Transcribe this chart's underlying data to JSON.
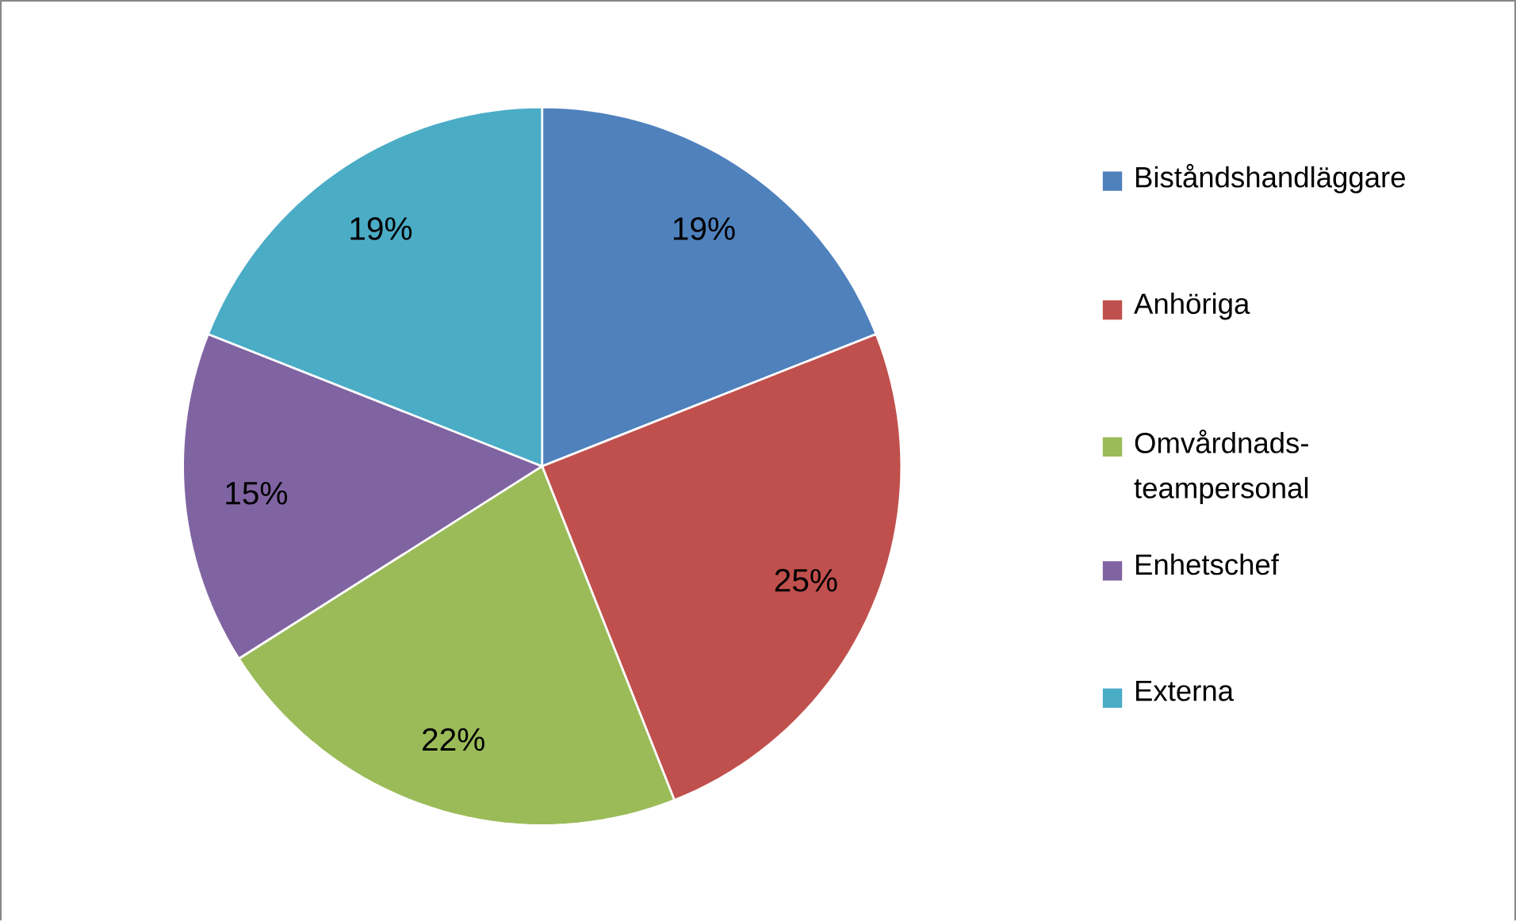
{
  "chart_data": {
    "type": "pie",
    "categories": [
      "Biståndshandläggare",
      "Anhöriga",
      "Omvårdnads-teampersonal",
      "Enhetschef",
      "Externa"
    ],
    "values": [
      19,
      25,
      22,
      15,
      19
    ],
    "value_labels": [
      "19%",
      "25%",
      "22%",
      "15%",
      "19%"
    ],
    "colors": [
      "#4f81bd",
      "#c0504d",
      "#9bbb59",
      "#8064a2",
      "#4bacc6"
    ],
    "legend": "right"
  }
}
